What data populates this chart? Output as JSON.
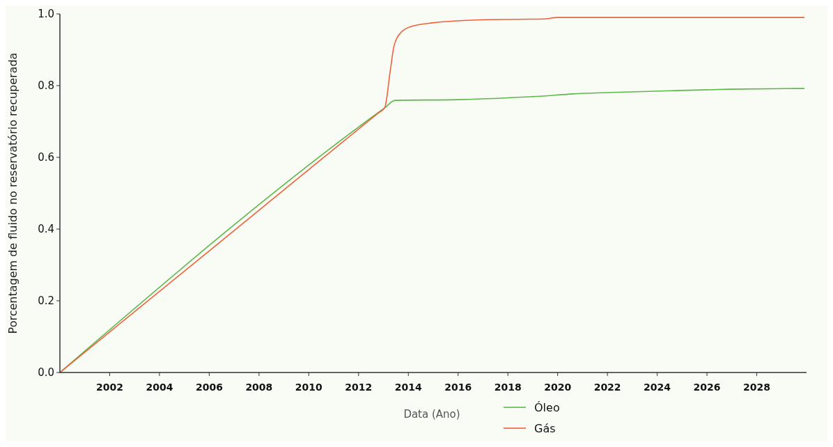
{
  "chart_data": {
    "type": "line",
    "xlabel": "Data (Ano)",
    "ylabel": "Porcentagem de fluido no reservatório recuperada",
    "xlim": [
      2000,
      2030
    ],
    "xticks": [
      2002,
      2004,
      2006,
      2008,
      2010,
      2012,
      2014,
      2016,
      2018,
      2020,
      2022,
      2024,
      2026,
      2028
    ],
    "ylim": [
      0,
      1
    ],
    "yticks": [
      {
        "value": 0,
        "label": "0.0"
      },
      {
        "value": 0.2,
        "label": "0.2"
      },
      {
        "value": 0.4,
        "label": "0.4"
      },
      {
        "value": 0.6,
        "label": "0.6"
      },
      {
        "value": 0.8,
        "label": "0.8"
      },
      {
        "value": 1,
        "label": "1.0"
      }
    ],
    "grid": false,
    "legend": "bottom",
    "marker": "none",
    "line_style": "solid",
    "series": [
      {
        "name": "Óleo",
        "color": "#5cb84a",
        "x": [
          2000,
          2013.05,
          2013.47,
          2016,
          2018,
          2019.4,
          2020.6,
          2022.2,
          2024.6,
          2026.9,
          2029.9
        ],
        "values": [
          0,
          0.738,
          0.759,
          0.761,
          0.766,
          0.771,
          0.777,
          0.781,
          0.786,
          0.79,
          0.792
        ]
      },
      {
        "name": "Gás",
        "color": "#f0603a",
        "x": [
          2000,
          2006,
          2010,
          2012,
          2012.8,
          2013.05,
          2013.28,
          2013.42,
          2013.7,
          2014.12,
          2014.96,
          2017.2,
          2019.44,
          2020,
          2029.9
        ],
        "values": [
          0,
          0.339,
          0.566,
          0.679,
          0.724,
          0.738,
          0.845,
          0.909,
          0.948,
          0.965,
          0.975,
          0.984,
          0.986,
          0.99,
          0.99
        ]
      }
    ]
  }
}
